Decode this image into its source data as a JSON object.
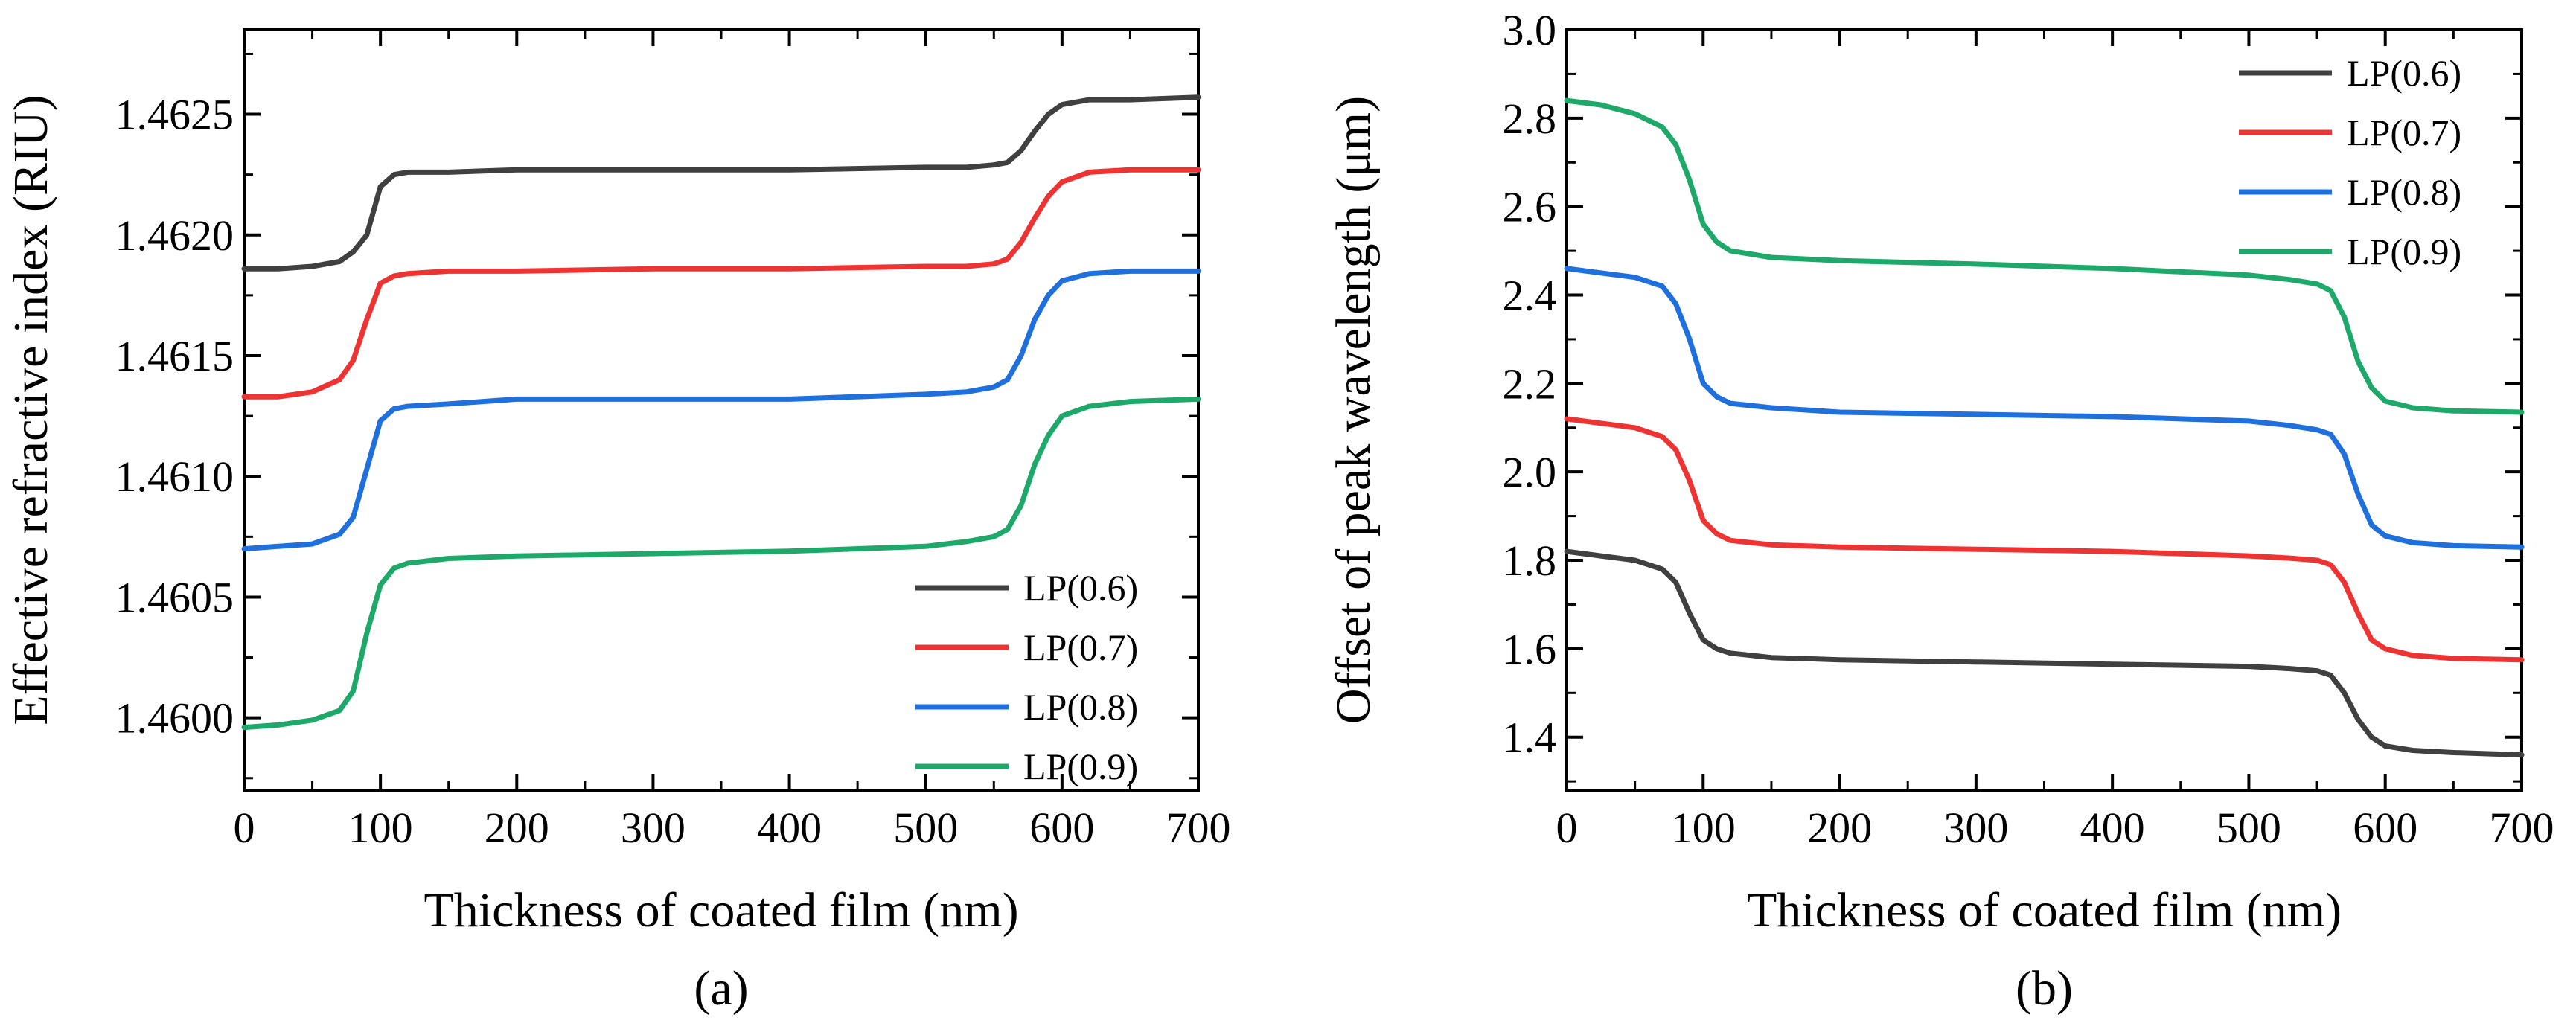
{
  "chart_data": [
    {
      "type": "line",
      "panel_label": "(a)",
      "xlabel": "Thickness of coated film (nm)",
      "ylabel": "Effective refractive index (RIU)",
      "xlim": [
        0,
        700
      ],
      "ylim": [
        1.4597,
        1.46285
      ],
      "xticks": [
        0,
        100,
        200,
        300,
        400,
        500,
        600,
        700
      ],
      "yticks": [
        1.46,
        1.4605,
        1.461,
        1.4615,
        1.462,
        1.4625
      ],
      "ytick_labels": [
        "1.4600",
        "1.4605",
        "1.4610",
        "1.4615",
        "1.4620",
        "1.4625"
      ],
      "grid": false,
      "legend_position": "bottom-right",
      "x": [
        0,
        25,
        50,
        70,
        80,
        90,
        100,
        110,
        120,
        150,
        200,
        300,
        400,
        500,
        530,
        550,
        560,
        570,
        580,
        590,
        600,
        620,
        650,
        700
      ],
      "series": [
        {
          "name": "LP(0.6)",
          "color": "#404040",
          "values": [
            1.46186,
            1.46186,
            1.46187,
            1.46189,
            1.46193,
            1.462,
            1.4622,
            1.46225,
            1.46226,
            1.46226,
            1.46227,
            1.46227,
            1.46227,
            1.46228,
            1.46228,
            1.46229,
            1.4623,
            1.46235,
            1.46243,
            1.4625,
            1.46254,
            1.46256,
            1.46256,
            1.46257
          ]
        },
        {
          "name": "LP(0.7)",
          "color": "#ee3333",
          "values": [
            1.46133,
            1.46133,
            1.46135,
            1.4614,
            1.46148,
            1.46165,
            1.4618,
            1.46183,
            1.46184,
            1.46185,
            1.46185,
            1.46186,
            1.46186,
            1.46187,
            1.46187,
            1.46188,
            1.4619,
            1.46197,
            1.46207,
            1.46216,
            1.46222,
            1.46226,
            1.46227,
            1.46227
          ]
        },
        {
          "name": "LP(0.8)",
          "color": "#1f6fdc",
          "values": [
            1.4607,
            1.46071,
            1.46072,
            1.46076,
            1.46083,
            1.46103,
            1.46123,
            1.46128,
            1.46129,
            1.4613,
            1.46132,
            1.46132,
            1.46132,
            1.46134,
            1.46135,
            1.46137,
            1.4614,
            1.4615,
            1.46165,
            1.46175,
            1.46181,
            1.46184,
            1.46185,
            1.46185
          ]
        },
        {
          "name": "LP(0.9)",
          "color": "#1ea86a",
          "values": [
            1.45996,
            1.45997,
            1.45999,
            1.46003,
            1.46011,
            1.46035,
            1.46055,
            1.46062,
            1.46064,
            1.46066,
            1.46067,
            1.46068,
            1.46069,
            1.46071,
            1.46073,
            1.46075,
            1.46078,
            1.46088,
            1.46105,
            1.46117,
            1.46125,
            1.46129,
            1.46131,
            1.46132
          ]
        }
      ]
    },
    {
      "type": "line",
      "panel_label": "(b)",
      "xlabel": "Thickness of coated film (nm)",
      "ylabel": "Offset of peak wavelength (μm)",
      "xlim": [
        0,
        700
      ],
      "ylim": [
        1.28,
        3.0
      ],
      "xticks": [
        0,
        100,
        200,
        300,
        400,
        500,
        600,
        700
      ],
      "yticks": [
        1.4,
        1.6,
        1.8,
        2.0,
        2.2,
        2.4,
        2.6,
        2.8,
        3.0
      ],
      "ytick_labels": [
        "1.4",
        "1.6",
        "1.8",
        "2.0",
        "2.2",
        "2.4",
        "2.6",
        "2.8",
        "3.0"
      ],
      "grid": false,
      "legend_position": "top-right",
      "x": [
        0,
        25,
        50,
        70,
        80,
        90,
        100,
        110,
        120,
        150,
        200,
        300,
        400,
        500,
        530,
        550,
        560,
        570,
        580,
        590,
        600,
        620,
        650,
        700
      ],
      "series": [
        {
          "name": "LP(0.6)",
          "color": "#404040",
          "values": [
            1.82,
            1.81,
            1.8,
            1.78,
            1.75,
            1.68,
            1.62,
            1.6,
            1.59,
            1.58,
            1.575,
            1.57,
            1.565,
            1.56,
            1.555,
            1.55,
            1.54,
            1.5,
            1.44,
            1.4,
            1.38,
            1.37,
            1.365,
            1.36
          ]
        },
        {
          "name": "LP(0.7)",
          "color": "#ee3333",
          "values": [
            2.12,
            2.11,
            2.1,
            2.08,
            2.05,
            1.98,
            1.89,
            1.86,
            1.845,
            1.835,
            1.83,
            1.825,
            1.82,
            1.81,
            1.805,
            1.8,
            1.79,
            1.75,
            1.68,
            1.62,
            1.6,
            1.585,
            1.578,
            1.575
          ]
        },
        {
          "name": "LP(0.8)",
          "color": "#1f6fdc",
          "values": [
            2.46,
            2.45,
            2.44,
            2.42,
            2.38,
            2.3,
            2.2,
            2.17,
            2.155,
            2.145,
            2.135,
            2.13,
            2.125,
            2.115,
            2.105,
            2.095,
            2.085,
            2.04,
            1.95,
            1.88,
            1.855,
            1.84,
            1.833,
            1.83
          ]
        },
        {
          "name": "LP(0.9)",
          "color": "#1ea86a",
          "values": [
            2.84,
            2.83,
            2.81,
            2.78,
            2.74,
            2.66,
            2.56,
            2.52,
            2.5,
            2.485,
            2.478,
            2.47,
            2.46,
            2.445,
            2.435,
            2.425,
            2.41,
            2.35,
            2.25,
            2.19,
            2.16,
            2.145,
            2.138,
            2.135
          ]
        }
      ]
    }
  ]
}
